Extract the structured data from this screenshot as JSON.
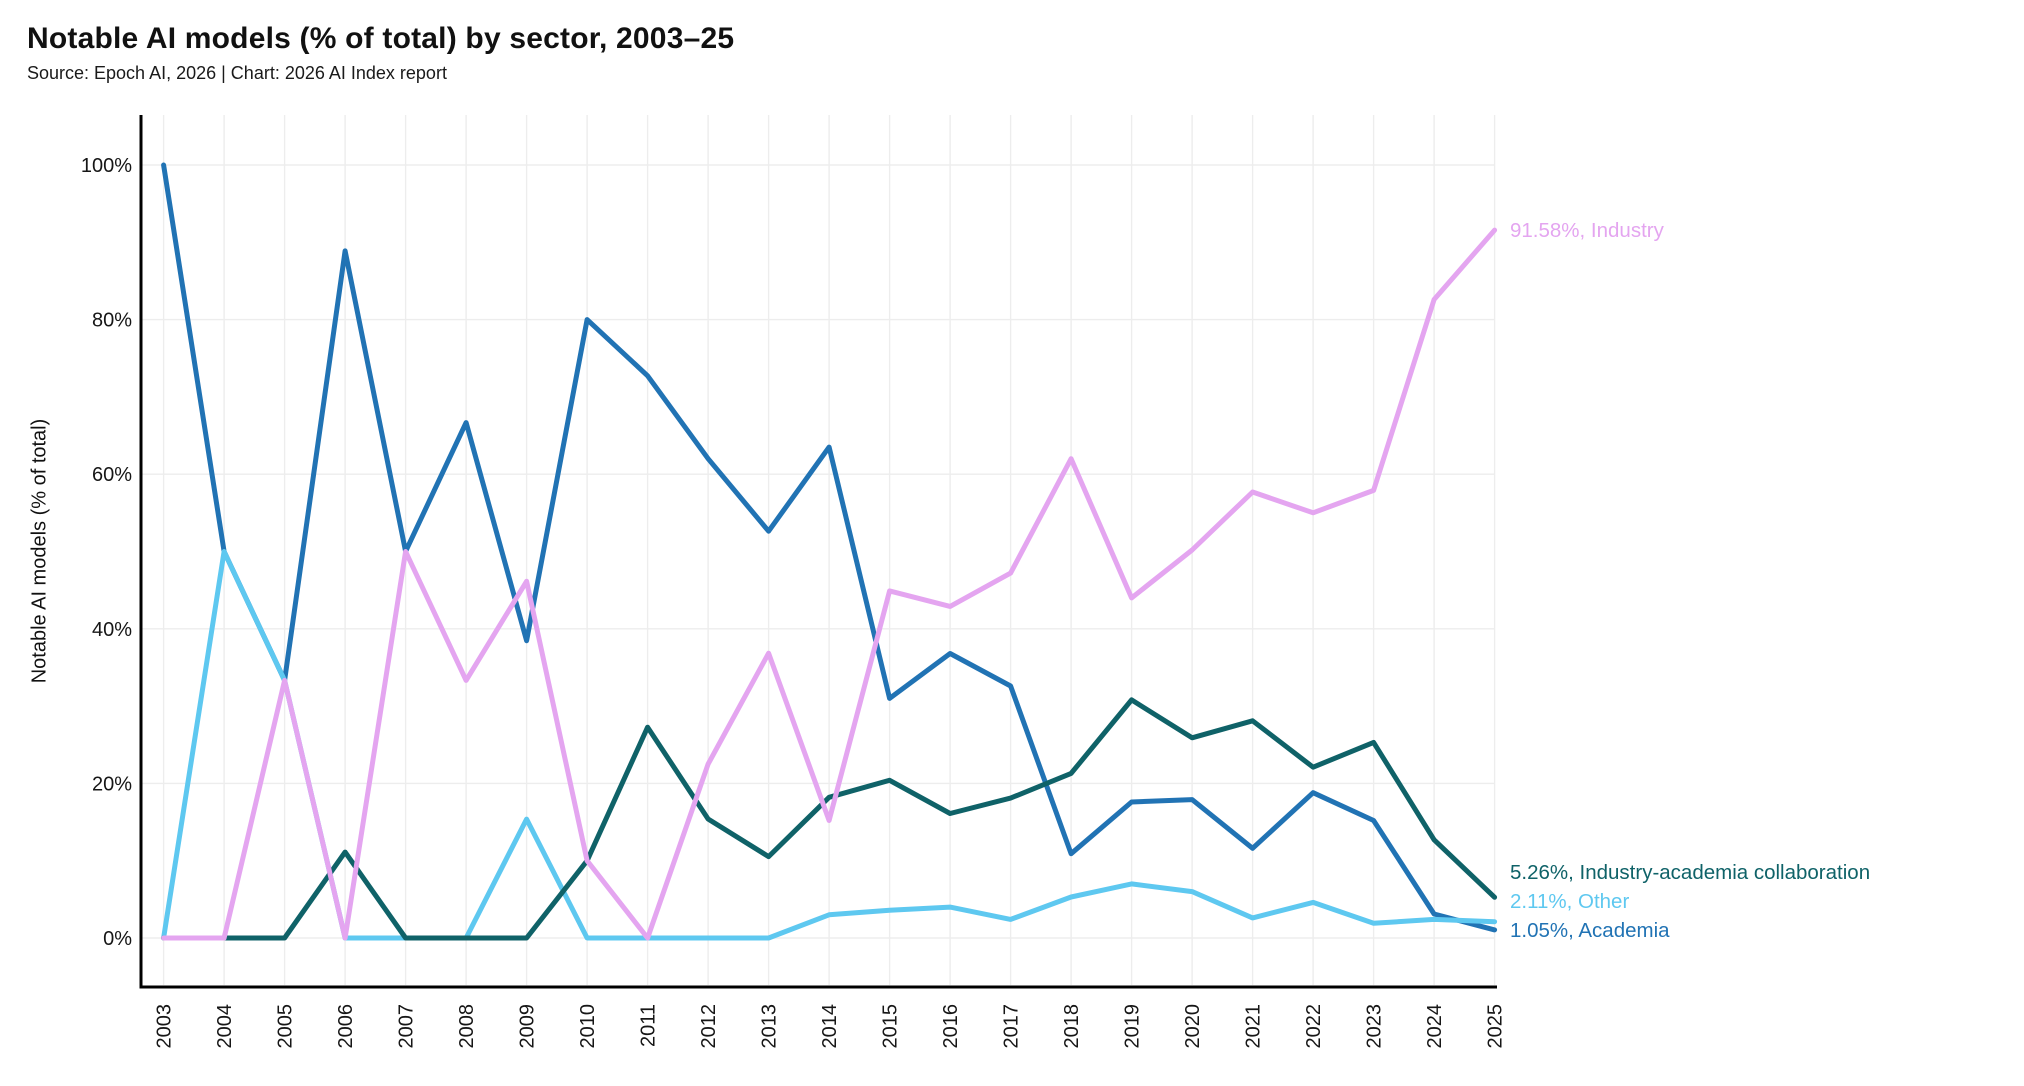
{
  "header": {
    "title": "Notable AI models (% of total) by sector, 2003–25",
    "source": "Source: Epoch AI, 2026 | Chart: 2026 AI Index report"
  },
  "chart_data": {
    "type": "line",
    "title": "Notable AI models (% of total) by sector, 2003–25",
    "xlabel": "",
    "ylabel": "Notable AI models (% of total)",
    "ylim": [
      0,
      100
    ],
    "grid": true,
    "legend_position": "end-labels-right",
    "categories": [
      "2003",
      "2004",
      "2005",
      "2006",
      "2007",
      "2008",
      "2009",
      "2010",
      "2011",
      "2012",
      "2013",
      "2014",
      "2015",
      "2016",
      "2017",
      "2018",
      "2019",
      "2020",
      "2021",
      "2022",
      "2023",
      "2024",
      "2025"
    ],
    "yticks": [
      {
        "label": "0%",
        "value": 0
      },
      {
        "label": "20%",
        "value": 20
      },
      {
        "label": "40%",
        "value": 40
      },
      {
        "label": "60%",
        "value": 60
      },
      {
        "label": "80%",
        "value": 80
      },
      {
        "label": "100%",
        "value": 100
      }
    ],
    "series": [
      {
        "name": "Academia",
        "color": "#2173b4",
        "end_label": "1.05%, Academia",
        "values": [
          100,
          50,
          33.33,
          88.89,
          50,
          66.67,
          38.46,
          80,
          72.73,
          62.0,
          52.63,
          63.5,
          31.0,
          36.8,
          32.6,
          10.9,
          17.6,
          17.9,
          11.6,
          18.8,
          15.2,
          3.1,
          1.05
        ]
      },
      {
        "name": "Other",
        "color": "#5ec8f0",
        "end_label": "2.11%, Other",
        "values": [
          0,
          50,
          33.33,
          0,
          0,
          0,
          15.38,
          0,
          0,
          0,
          0,
          3.0,
          3.6,
          4.0,
          2.4,
          5.3,
          7.0,
          6.0,
          2.6,
          4.6,
          1.9,
          2.4,
          2.11
        ]
      },
      {
        "name": "Industry-academia collaboration",
        "color": "#0f6268",
        "end_label": "5.26%, Industry-academia collaboration",
        "values": [
          0,
          0,
          0,
          11.11,
          0,
          0,
          0,
          10,
          27.27,
          15.4,
          10.53,
          18.2,
          20.4,
          16.1,
          18.1,
          21.3,
          30.8,
          25.9,
          28.1,
          22.1,
          25.3,
          12.7,
          5.26
        ]
      },
      {
        "name": "Industry",
        "color": "#e4a5f0",
        "end_label": "91.58%, Industry",
        "values": [
          0,
          0,
          33.33,
          0,
          50,
          33.33,
          46.15,
          10,
          0,
          22.5,
          36.84,
          15.2,
          44.9,
          42.9,
          47.2,
          62.0,
          44.0,
          50.2,
          57.7,
          55.0,
          57.9,
          82.6,
          91.58
        ]
      }
    ]
  }
}
